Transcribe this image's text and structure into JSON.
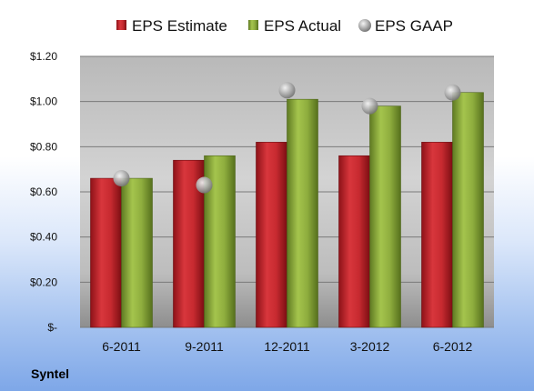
{
  "chart_data": {
    "type": "bar",
    "categories": [
      "6-2011",
      "9-2011",
      "12-2011",
      "3-2012",
      "6-2012"
    ],
    "series": [
      {
        "name": "EPS Estimate",
        "kind": "bar",
        "color": "#c0272d",
        "values": [
          0.66,
          0.74,
          0.82,
          0.76,
          0.82
        ]
      },
      {
        "name": "EPS Actual",
        "kind": "bar",
        "color": "#8aa83a",
        "values": [
          0.66,
          0.76,
          1.01,
          0.98,
          1.04
        ]
      },
      {
        "name": "EPS GAAP",
        "kind": "marker",
        "color": "#a8a8a8",
        "values": [
          0.66,
          0.63,
          1.05,
          0.98,
          1.04
        ]
      }
    ],
    "ylim": [
      0,
      1.2
    ],
    "yticks": [
      {
        "value": 0,
        "label": "$-"
      },
      {
        "value": 0.2,
        "label": "$0.20"
      },
      {
        "value": 0.4,
        "label": "$0.40"
      },
      {
        "value": 0.6,
        "label": "$0.60"
      },
      {
        "value": 0.8,
        "label": "$0.80"
      },
      {
        "value": 1.0,
        "label": "$1.00"
      },
      {
        "value": 1.2,
        "label": "$1.20"
      }
    ],
    "grid": true,
    "legend_position": "top",
    "company": "Syntel"
  }
}
